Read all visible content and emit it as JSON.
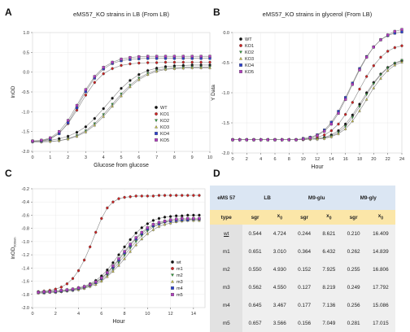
{
  "panels": {
    "a": "A",
    "b": "B",
    "c": "C",
    "d": "D"
  },
  "colors": {
    "wt": "#111111",
    "ko1": "#cc2222",
    "ko2": "#2e9e3a",
    "ko3": "#c9c245",
    "ko4": "#2a3fcf",
    "ko5": "#b23cc0",
    "fit": "#888888"
  },
  "chart_data": [
    {
      "id": "A",
      "type": "scatter",
      "title": "eMS57_KO strains in LB (From LB)",
      "xlabel": "Glucose from glucose",
      "ylabel": "lnOD",
      "xlim": [
        0,
        10
      ],
      "ylim": [
        -2.0,
        1.0
      ],
      "xticks": [
        "0",
        "1",
        "2",
        "3",
        "4",
        "5",
        "6",
        "7",
        "8",
        "9",
        "10"
      ],
      "yticks": [
        "-2.0",
        "-1.5",
        "-1.0",
        "-0.5",
        "0.0",
        "0.5",
        "1.0"
      ],
      "legend_position": "lower-right",
      "x": [
        0,
        0.5,
        1,
        1.5,
        2,
        2.5,
        3,
        3.5,
        4,
        4.5,
        5,
        5.5,
        6,
        6.5,
        7,
        7.5,
        8,
        8.5,
        9,
        9.5,
        10
      ],
      "series": [
        {
          "name": "WT",
          "marker": "circle",
          "color": "#111111",
          "values": [
            -1.74,
            -1.74,
            -1.72,
            -1.68,
            -1.62,
            -1.52,
            -1.38,
            -1.17,
            -0.92,
            -0.66,
            -0.41,
            -0.21,
            -0.06,
            0.04,
            0.1,
            0.14,
            0.16,
            0.17,
            0.18,
            0.18,
            0.18
          ]
        },
        {
          "name": "KO1",
          "marker": "circle",
          "color": "#cc2222",
          "values": [
            -1.74,
            -1.73,
            -1.68,
            -1.54,
            -1.3,
            -0.96,
            -0.58,
            -0.26,
            -0.04,
            0.09,
            0.17,
            0.21,
            0.23,
            0.24,
            0.24,
            0.25,
            0.25,
            0.25,
            0.25,
            0.25,
            0.25
          ]
        },
        {
          "name": "KO2",
          "marker": "triangle-down",
          "color": "#2e9e3a",
          "values": [
            -1.76,
            -1.76,
            -1.75,
            -1.73,
            -1.68,
            -1.6,
            -1.48,
            -1.3,
            -1.07,
            -0.81,
            -0.55,
            -0.33,
            -0.15,
            -0.03,
            0.05,
            0.09,
            0.11,
            0.12,
            0.13,
            0.13,
            0.13
          ]
        },
        {
          "name": "KO3",
          "marker": "triangle-up",
          "color": "#c9c245",
          "values": [
            -1.76,
            -1.76,
            -1.75,
            -1.73,
            -1.69,
            -1.62,
            -1.51,
            -1.34,
            -1.12,
            -0.86,
            -0.6,
            -0.37,
            -0.19,
            -0.06,
            0.02,
            0.07,
            0.09,
            0.1,
            0.11,
            0.11,
            0.11
          ]
        },
        {
          "name": "KO4",
          "marker": "square",
          "color": "#2a3fcf",
          "values": [
            -1.75,
            -1.74,
            -1.69,
            -1.55,
            -1.28,
            -0.9,
            -0.49,
            -0.15,
            0.08,
            0.22,
            0.29,
            0.32,
            0.34,
            0.35,
            0.35,
            0.35,
            0.35,
            0.35,
            0.35,
            0.35,
            0.35
          ]
        },
        {
          "name": "KO5",
          "marker": "square",
          "color": "#b23cc0",
          "values": [
            -1.74,
            -1.72,
            -1.66,
            -1.5,
            -1.22,
            -0.84,
            -0.44,
            -0.11,
            0.12,
            0.25,
            0.33,
            0.37,
            0.39,
            0.4,
            0.4,
            0.4,
            0.4,
            0.4,
            0.4,
            0.4,
            0.4
          ]
        }
      ]
    },
    {
      "id": "B",
      "type": "scatter",
      "title": "eMS57_KO strains in glycerol (From LB)",
      "xlabel": "Hour",
      "ylabel": "Y Data",
      "xlim": [
        0,
        24
      ],
      "ylim": [
        -2.0,
        0.0
      ],
      "xticks": [
        "0",
        "2",
        "4",
        "6",
        "8",
        "10",
        "12",
        "14",
        "16",
        "18",
        "20",
        "22",
        "24"
      ],
      "yticks": [
        "-2.0",
        "-1.5",
        "-1.0",
        "-0.5",
        "0.0"
      ],
      "legend_position": "top-left",
      "x": [
        0,
        1,
        2,
        3,
        4,
        5,
        6,
        7,
        8,
        9,
        10,
        11,
        12,
        13,
        14,
        15,
        16,
        17,
        18,
        19,
        20,
        21,
        22,
        23,
        24
      ],
      "series": [
        {
          "name": "WT",
          "marker": "circle",
          "color": "#111111",
          "values": [
            -1.78,
            -1.78,
            -1.78,
            -1.78,
            -1.78,
            -1.78,
            -1.78,
            -1.78,
            -1.78,
            -1.78,
            -1.77,
            -1.77,
            -1.76,
            -1.74,
            -1.7,
            -1.63,
            -1.52,
            -1.37,
            -1.19,
            -1.0,
            -0.83,
            -0.69,
            -0.58,
            -0.51,
            -0.47
          ]
        },
        {
          "name": "KO1",
          "marker": "circle",
          "color": "#cc2222",
          "values": [
            -1.78,
            -1.78,
            -1.78,
            -1.78,
            -1.78,
            -1.78,
            -1.78,
            -1.78,
            -1.78,
            -1.78,
            -1.77,
            -1.76,
            -1.74,
            -1.7,
            -1.63,
            -1.52,
            -1.36,
            -1.16,
            -0.94,
            -0.73,
            -0.55,
            -0.41,
            -0.31,
            -0.25,
            -0.22
          ]
        },
        {
          "name": "KO2",
          "marker": "triangle-down",
          "color": "#2e9e3a",
          "values": [
            -1.78,
            -1.78,
            -1.78,
            -1.78,
            -1.78,
            -1.78,
            -1.78,
            -1.78,
            -1.78,
            -1.78,
            -1.78,
            -1.77,
            -1.77,
            -1.75,
            -1.72,
            -1.66,
            -1.56,
            -1.41,
            -1.23,
            -1.03,
            -0.85,
            -0.7,
            -0.59,
            -0.51,
            -0.46
          ]
        },
        {
          "name": "KO3",
          "marker": "triangle-up",
          "color": "#c9c245",
          "values": [
            -1.78,
            -1.78,
            -1.78,
            -1.78,
            -1.78,
            -1.78,
            -1.78,
            -1.78,
            -1.78,
            -1.78,
            -1.78,
            -1.77,
            -1.77,
            -1.76,
            -1.73,
            -1.68,
            -1.6,
            -1.47,
            -1.3,
            -1.11,
            -0.92,
            -0.76,
            -0.63,
            -0.54,
            -0.49
          ]
        },
        {
          "name": "KO4",
          "marker": "square",
          "color": "#2a3fcf",
          "values": [
            -1.78,
            -1.78,
            -1.78,
            -1.78,
            -1.78,
            -1.78,
            -1.78,
            -1.78,
            -1.78,
            -1.78,
            -1.76,
            -1.74,
            -1.7,
            -1.62,
            -1.49,
            -1.31,
            -1.08,
            -0.84,
            -0.6,
            -0.4,
            -0.24,
            -0.12,
            -0.05,
            -0.01,
            0.01
          ]
        },
        {
          "name": "KO5",
          "marker": "square",
          "color": "#b23cc0",
          "values": [
            -1.78,
            -1.78,
            -1.78,
            -1.78,
            -1.78,
            -1.78,
            -1.78,
            -1.78,
            -1.78,
            -1.78,
            -1.77,
            -1.75,
            -1.71,
            -1.64,
            -1.52,
            -1.34,
            -1.11,
            -0.86,
            -0.62,
            -0.41,
            -0.24,
            -0.12,
            -0.04,
            0.02,
            0.05
          ]
        }
      ]
    },
    {
      "id": "C",
      "type": "scatter",
      "title": "",
      "xlabel": "Hour",
      "ylabel": "lnOD",
      "ylabel_sub": "600nm",
      "xlim": [
        0,
        15
      ],
      "ylim": [
        -2.0,
        -0.2
      ],
      "xticks": [
        "0",
        "2",
        "4",
        "6",
        "8",
        "10",
        "12",
        "14"
      ],
      "yticks": [
        "-2.0",
        "-1.8",
        "-1.6",
        "-1.4",
        "-1.2",
        "-1.0",
        "-0.8",
        "-0.6",
        "-0.4",
        "-0.2"
      ],
      "legend_position": "lower-right",
      "x": [
        0.5,
        1,
        1.5,
        2,
        2.5,
        3,
        3.5,
        4,
        4.5,
        5,
        5.5,
        6,
        6.5,
        7,
        7.5,
        8,
        8.5,
        9,
        9.5,
        10,
        10.5,
        11,
        11.5,
        12,
        12.5,
        13,
        13.5,
        14,
        14.5
      ],
      "series": [
        {
          "name": "wt",
          "marker": "circle",
          "color": "#111111",
          "values": [
            -1.76,
            -1.76,
            -1.75,
            -1.75,
            -1.74,
            -1.73,
            -1.72,
            -1.7,
            -1.68,
            -1.64,
            -1.59,
            -1.52,
            -1.43,
            -1.32,
            -1.2,
            -1.08,
            -0.97,
            -0.87,
            -0.79,
            -0.73,
            -0.68,
            -0.65,
            -0.63,
            -0.62,
            -0.61,
            -0.61,
            -0.6,
            -0.6,
            -0.6
          ]
        },
        {
          "name": "m1",
          "marker": "circle",
          "color": "#cc2222",
          "values": [
            -1.76,
            -1.75,
            -1.74,
            -1.72,
            -1.69,
            -1.64,
            -1.56,
            -1.44,
            -1.28,
            -1.08,
            -0.86,
            -0.65,
            -0.49,
            -0.4,
            -0.35,
            -0.33,
            -0.32,
            -0.31,
            -0.31,
            -0.31,
            -0.31,
            -0.3,
            -0.3,
            -0.3,
            -0.3,
            -0.3,
            -0.3,
            -0.3,
            -0.3
          ]
        },
        {
          "name": "m2",
          "marker": "triangle-down",
          "color": "#2e9e3a",
          "values": [
            -1.77,
            -1.77,
            -1.76,
            -1.76,
            -1.75,
            -1.74,
            -1.73,
            -1.72,
            -1.7,
            -1.67,
            -1.63,
            -1.58,
            -1.51,
            -1.42,
            -1.32,
            -1.21,
            -1.1,
            -1.0,
            -0.91,
            -0.84,
            -0.78,
            -0.74,
            -0.71,
            -0.69,
            -0.68,
            -0.67,
            -0.66,
            -0.66,
            -0.66
          ]
        },
        {
          "name": "m3",
          "marker": "triangle-up",
          "color": "#c9c245",
          "values": [
            -1.78,
            -1.78,
            -1.77,
            -1.77,
            -1.76,
            -1.75,
            -1.74,
            -1.73,
            -1.71,
            -1.68,
            -1.65,
            -1.6,
            -1.53,
            -1.45,
            -1.36,
            -1.26,
            -1.15,
            -1.05,
            -0.96,
            -0.88,
            -0.82,
            -0.77,
            -0.74,
            -0.72,
            -0.7,
            -0.69,
            -0.68,
            -0.68,
            -0.68
          ]
        },
        {
          "name": "m4",
          "marker": "square",
          "color": "#2a3fcf",
          "values": [
            -1.77,
            -1.77,
            -1.76,
            -1.76,
            -1.75,
            -1.74,
            -1.73,
            -1.71,
            -1.69,
            -1.66,
            -1.62,
            -1.56,
            -1.48,
            -1.39,
            -1.28,
            -1.17,
            -1.06,
            -0.96,
            -0.88,
            -0.81,
            -0.76,
            -0.73,
            -0.7,
            -0.69,
            -0.68,
            -0.67,
            -0.67,
            -0.66,
            -0.66
          ]
        },
        {
          "name": "m5",
          "marker": "square",
          "color": "#b23cc0",
          "values": [
            -1.77,
            -1.76,
            -1.76,
            -1.75,
            -1.74,
            -1.73,
            -1.72,
            -1.7,
            -1.68,
            -1.65,
            -1.61,
            -1.55,
            -1.47,
            -1.37,
            -1.26,
            -1.15,
            -1.04,
            -0.94,
            -0.86,
            -0.79,
            -0.74,
            -0.71,
            -0.69,
            -0.67,
            -0.66,
            -0.65,
            -0.65,
            -0.65,
            -0.65
          ]
        }
      ]
    },
    {
      "id": "D",
      "type": "table",
      "corner": "eMS 57",
      "groups": [
        "LB",
        "M9-glu",
        "M9-gly"
      ],
      "header": [
        "type",
        "sgr",
        "x0",
        "sgr",
        "x0",
        "sgr",
        "x0"
      ],
      "rows": [
        [
          "wt",
          "0.544",
          "4.724",
          "0.244",
          "8.621",
          "0.210",
          "16.409"
        ],
        [
          "m1",
          "0.651",
          "3.010",
          "0.364",
          "6.432",
          "0.262",
          "14.839"
        ],
        [
          "m2",
          "0.550",
          "4.930",
          "0.152",
          "7.925",
          "0.255",
          "16.806"
        ],
        [
          "m3",
          "0.562",
          "4.550",
          "0.127",
          "8.219",
          "0.249",
          "17.792"
        ],
        [
          "m4",
          "0.645",
          "3.467",
          "0.177",
          "7.136",
          "0.256",
          "15.086"
        ],
        [
          "m5",
          "0.657",
          "3.566",
          "0.156",
          "7.049",
          "0.281",
          "17.015"
        ]
      ]
    }
  ]
}
